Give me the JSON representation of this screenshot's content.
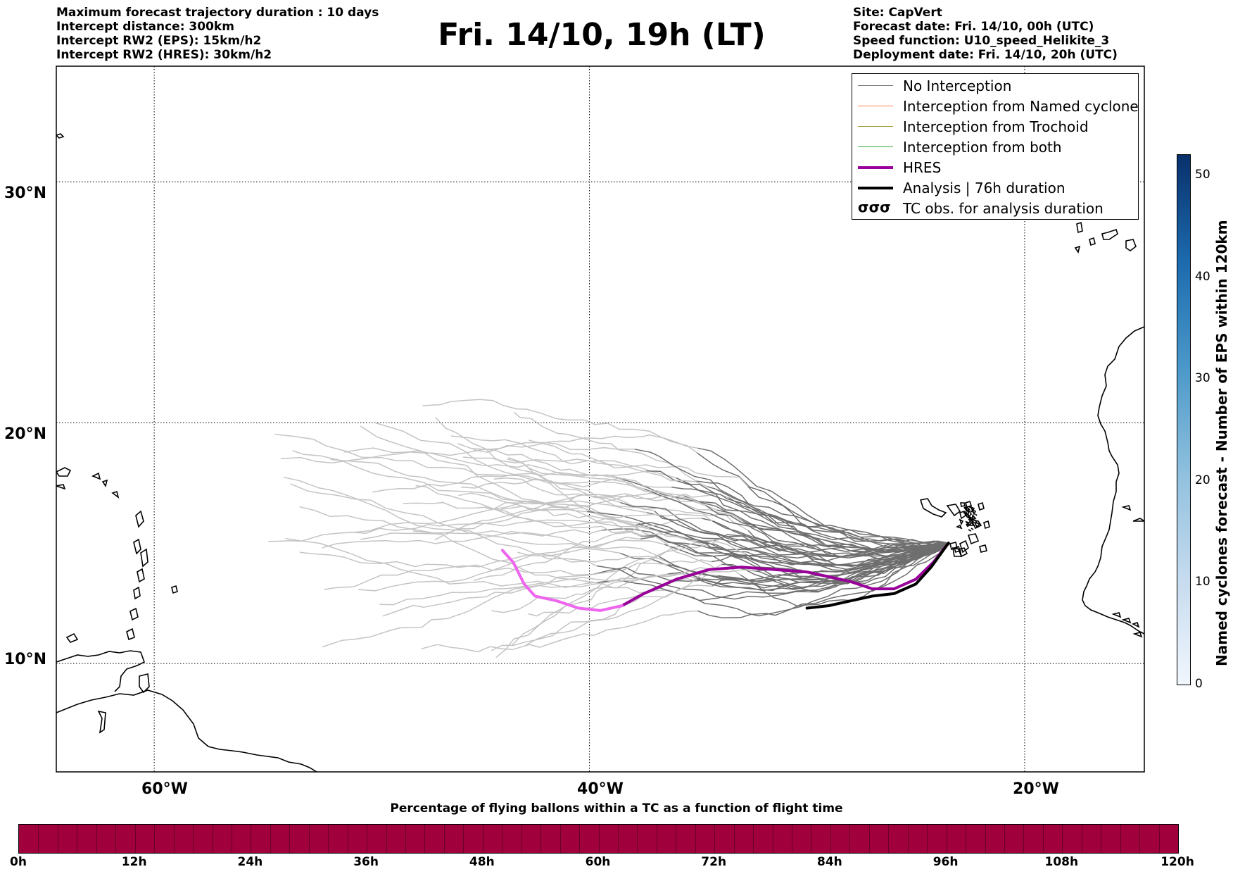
{
  "header": {
    "left_lines": [
      "Maximum forecast trajectory duration : 10 days",
      "Intercept distance: 300km",
      "Intercept RW2 (EPS):  15km/h2",
      "Intercept RW2 (HRES): 30km/h2"
    ],
    "title": "Fri. 14/10, 19h (LT)",
    "right_lines": [
      "Site: CapVert",
      "Forecast date: Fri. 14/10, 00h (UTC)",
      "Speed function: U10_speed_Helikite_3",
      "Deployment date: Fri. 14/10, 20h (UTC)"
    ]
  },
  "map": {
    "lon_range": [
      -64.5,
      -14.5
    ],
    "lat_range": [
      5.5,
      34.8
    ],
    "lat_gridlines": [
      {
        "lat": 30,
        "label": "30°N"
      },
      {
        "lat": 20,
        "label": "20°N"
      },
      {
        "lat": 10,
        "label": "10°N"
      }
    ],
    "lon_gridlines": [
      {
        "lon": -60,
        "label": "60°W"
      },
      {
        "lon": -40,
        "label": "40°W"
      },
      {
        "lon": -20,
        "label": "20°W"
      }
    ]
  },
  "legend": {
    "items": [
      {
        "label": "No Interception",
        "color": "#777777",
        "width": 1.5
      },
      {
        "label": "Interception from Named cyclone",
        "color": "#ff7f50",
        "width": 1.5
      },
      {
        "label": "Interception from Trochoid",
        "color": "#999933",
        "width": 1.5
      },
      {
        "label": "Interception from both",
        "color": "#33aa33",
        "width": 1.5
      },
      {
        "label": "HRES",
        "color": "#990099",
        "width": 4
      },
      {
        "label": "Analysis | 76h duration",
        "color": "#000000",
        "width": 4
      },
      {
        "label": "TC obs. for analysis duration",
        "color": "#000000",
        "width": 0,
        "icon": "cyclone-symbols-icon"
      }
    ]
  },
  "colorbar_vertical": {
    "label": "Named cyclones forecast - Number of EPS within 120km",
    "ticks": [
      "0",
      "10",
      "20",
      "30",
      "40",
      "50"
    ],
    "max": 52
  },
  "colorbar_horizontal": {
    "title": "Percentage of flying ballons within a TC as a function of flight time",
    "ticks": [
      "0h",
      "12h",
      "24h",
      "36h",
      "48h",
      "60h",
      "72h",
      "84h",
      "96h",
      "108h",
      "120h"
    ],
    "fill_color": "#a0003c"
  },
  "tracks": {
    "release_point": [
      -23.5,
      15.0
    ],
    "hres": [
      [
        -23.5,
        15.0
      ],
      [
        -24.2,
        14.2
      ],
      [
        -25.0,
        13.5
      ],
      [
        -26.0,
        13.1
      ],
      [
        -27.0,
        13.1
      ],
      [
        -28.0,
        13.4
      ],
      [
        -29.0,
        13.6
      ],
      [
        -30.0,
        13.8
      ],
      [
        -31.5,
        13.9
      ],
      [
        -33.0,
        14.0
      ],
      [
        -34.5,
        13.9
      ],
      [
        -36.0,
        13.5
      ],
      [
        -37.5,
        12.9
      ],
      [
        -38.5,
        12.4
      ],
      [
        -39.5,
        12.2
      ],
      [
        -40.5,
        12.3
      ],
      [
        -41.5,
        12.6
      ],
      [
        -42.5,
        12.8
      ],
      [
        -43.0,
        13.3
      ],
      [
        -43.5,
        14.2
      ],
      [
        -44.0,
        14.7
      ]
    ],
    "hres_light_from_index": 13,
    "analysis": [
      [
        -23.5,
        15.0
      ],
      [
        -24.3,
        14.0
      ],
      [
        -25.0,
        13.3
      ],
      [
        -26.0,
        12.9
      ],
      [
        -27.0,
        12.8
      ],
      [
        -28.0,
        12.6
      ],
      [
        -29.0,
        12.4
      ],
      [
        -30.0,
        12.3
      ]
    ]
  }
}
